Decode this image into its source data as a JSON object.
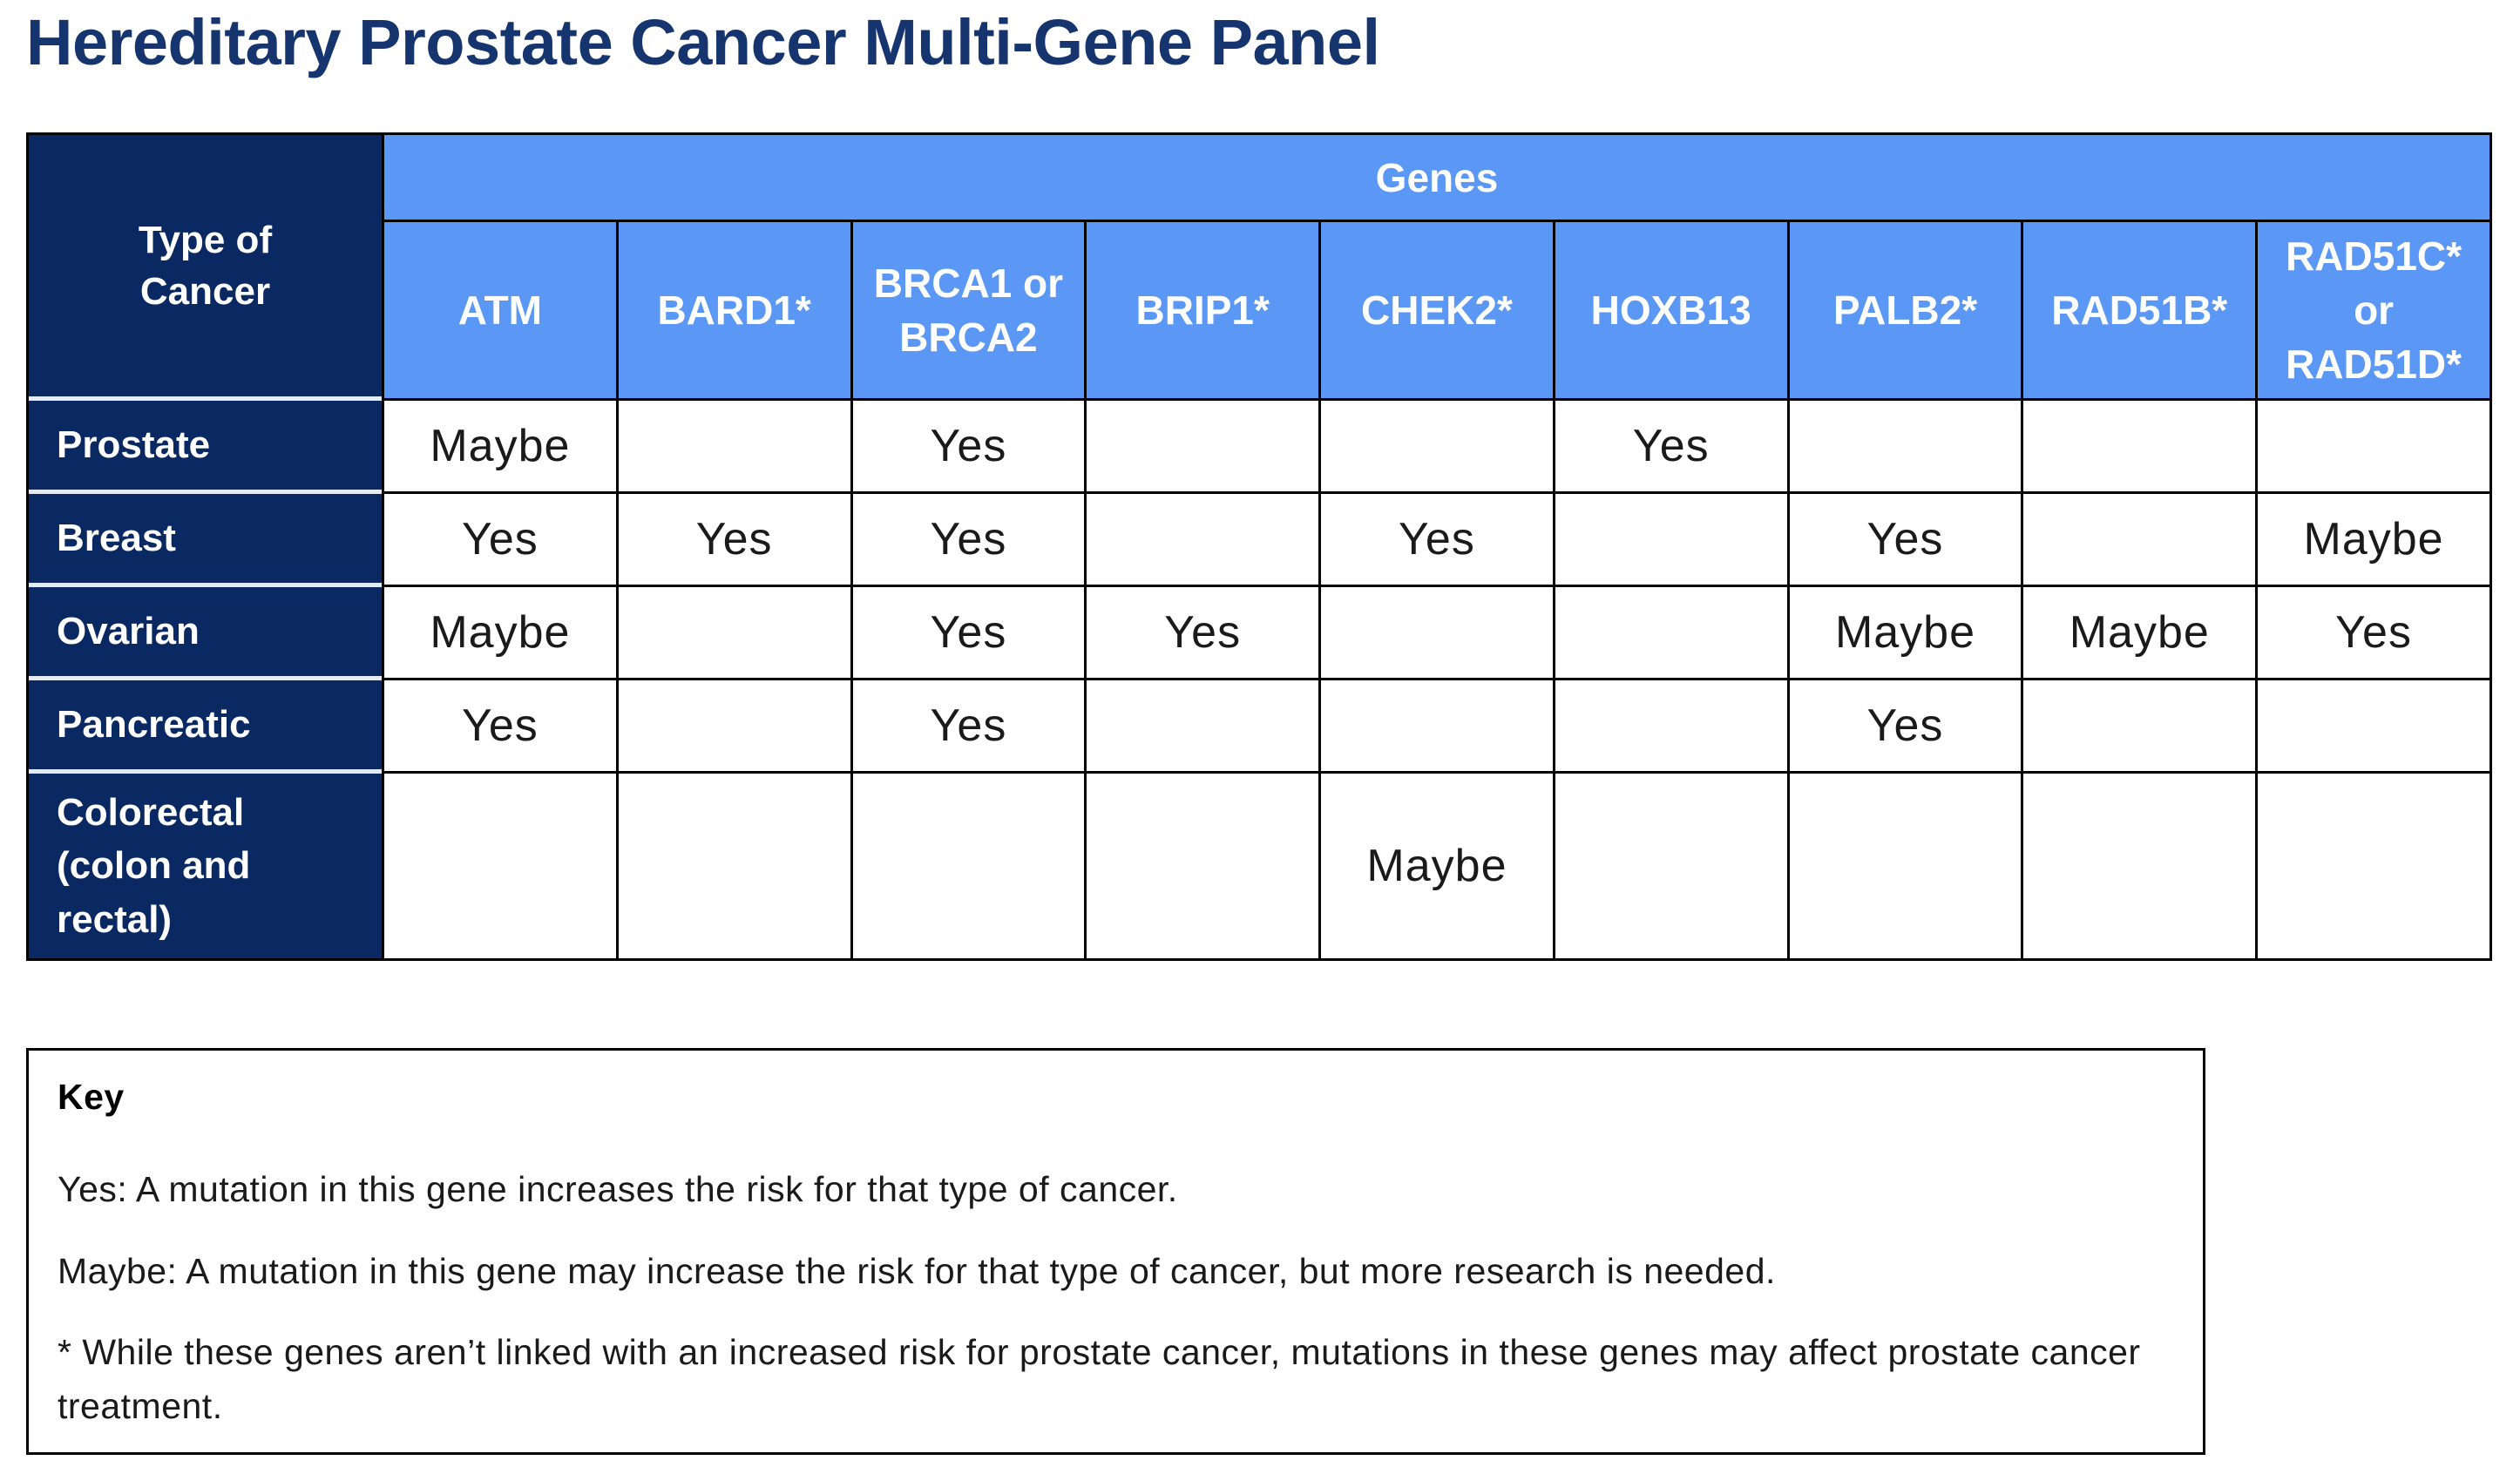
{
  "title": "Hereditary Prostate Cancer Multi-Gene Panel",
  "table": {
    "corner_label": "Type of Cancer",
    "genes_banner": "Genes",
    "columns": [
      "ATM",
      "BARD1*",
      "BRCA1 or BRCA2",
      "BRIP1*",
      "CHEK2*",
      "HOXB13",
      "PALB2*",
      "RAD51B*",
      "RAD51C* or RAD51D*"
    ],
    "rows": [
      {
        "label": "Prostate",
        "values": [
          "Maybe",
          "",
          "Yes",
          "",
          "",
          "Yes",
          "",
          "",
          ""
        ]
      },
      {
        "label": "Breast",
        "values": [
          "Yes",
          "Yes",
          "Yes",
          "",
          "Yes",
          "",
          "Yes",
          "",
          "Maybe"
        ]
      },
      {
        "label": "Ovarian",
        "values": [
          "Maybe",
          "",
          "Yes",
          "Yes",
          "",
          "",
          "Maybe",
          "Maybe",
          "Yes"
        ]
      },
      {
        "label": "Pancreatic",
        "values": [
          "Yes",
          "",
          "Yes",
          "",
          "",
          "",
          "Yes",
          "",
          ""
        ]
      },
      {
        "label": "Colorectal (colon and rectal)",
        "values": [
          "",
          "",
          "",
          "",
          "Maybe",
          "",
          "",
          "",
          ""
        ]
      }
    ],
    "cell_legend_values": [
      "Yes",
      "Maybe"
    ]
  },
  "key": {
    "title": "Key",
    "lines": [
      "Yes: A mutation in this gene increases the risk for that type of cancer.",
      "Maybe: A mutation in this gene may increase the risk for that type of cancer, but more research is needed.",
      "* While these genes aren’t linked with an increased risk for prostate cancer, mutations in these genes may affect prostate cancer treatment."
    ]
  },
  "colors": {
    "navy": "#0a2963",
    "title_navy": "#16356f",
    "header_blue": "#5b97f5",
    "grid_line": "#000000",
    "navy_row_separator": "#e6eaf2",
    "cell_text": "#1a1a1a"
  }
}
